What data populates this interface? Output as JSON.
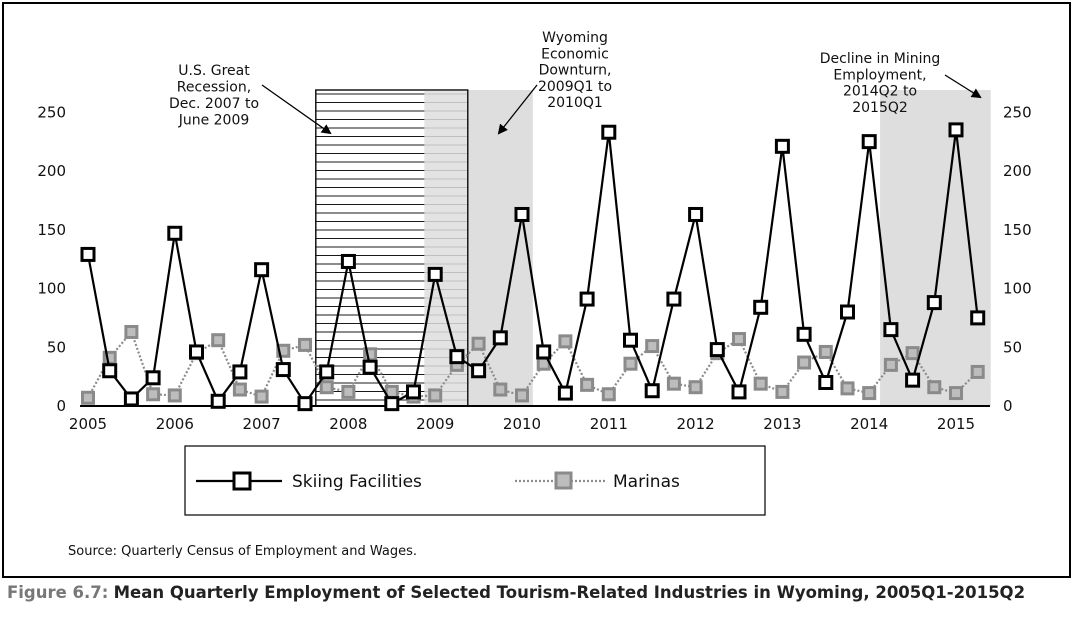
{
  "caption": {
    "prefix": "Figure 6.7:",
    "title": "Mean Quarterly Employment of Selected Tourism-Related Industries in Wyoming, 2005Q1-2015Q2"
  },
  "source": "Source: Quarterly Census of Employment and Wages.",
  "annotations": {
    "recession": [
      "U.S. Great",
      "Recession,",
      "Dec. 2007 to",
      "June 2009"
    ],
    "wyoming": [
      "Wyoming",
      "Economic",
      "Downturn,",
      "2009Q1 to",
      "2010Q1"
    ],
    "mining": [
      "Decline in Mining",
      "Employment,",
      "2014Q2 to",
      "2015Q2"
    ]
  },
  "colors": {
    "skiing": "#000000",
    "marinas": "#888888",
    "shade": "#dedede"
  },
  "chart_data": {
    "type": "line",
    "title": "",
    "xlabel": "",
    "ylabel": "",
    "ylim": [
      0,
      250
    ],
    "yticks": [
      0,
      50,
      100,
      150,
      200,
      250
    ],
    "xlim": [
      "2005Q1",
      "2015Q2"
    ],
    "year_labels": [
      "2005",
      "2006",
      "2007",
      "2008",
      "2009",
      "2010",
      "2011",
      "2012",
      "2013",
      "2014",
      "2015"
    ],
    "x": [
      "2005Q1",
      "2005Q2",
      "2005Q3",
      "2005Q4",
      "2006Q1",
      "2006Q2",
      "2006Q3",
      "2006Q4",
      "2007Q1",
      "2007Q2",
      "2007Q3",
      "2007Q4",
      "2008Q1",
      "2008Q2",
      "2008Q3",
      "2008Q4",
      "2009Q1",
      "2009Q2",
      "2009Q3",
      "2009Q4",
      "2010Q1",
      "2010Q2",
      "2010Q3",
      "2010Q4",
      "2011Q1",
      "2011Q2",
      "2011Q3",
      "2011Q4",
      "2012Q1",
      "2012Q2",
      "2012Q3",
      "2012Q4",
      "2013Q1",
      "2013Q2",
      "2013Q3",
      "2013Q4",
      "2014Q1",
      "2014Q2",
      "2014Q3",
      "2014Q4",
      "2015Q1",
      "2015Q2"
    ],
    "series": [
      {
        "name": "Skiing Facilities",
        "values": [
          129,
          30,
          6,
          24,
          147,
          46,
          4,
          29,
          116,
          31,
          2,
          29,
          123,
          33,
          2,
          12,
          112,
          42,
          30,
          58,
          163,
          46,
          11,
          91,
          233,
          56,
          13,
          91,
          163,
          48,
          12,
          84,
          221,
          61,
          20,
          80,
          225,
          65,
          22,
          88,
          235,
          75
        ]
      },
      {
        "name": "Marinas",
        "values": [
          7,
          41,
          63,
          10,
          9,
          45,
          56,
          14,
          8,
          47,
          52,
          16,
          12,
          44,
          12,
          8,
          9,
          35,
          53,
          14,
          9,
          36,
          55,
          18,
          10,
          36,
          51,
          19,
          16,
          45,
          57,
          19,
          12,
          37,
          46,
          15,
          11,
          35,
          45,
          16,
          11,
          29
        ]
      }
    ],
    "shaded_periods": [
      {
        "name": "U.S. Great Recession",
        "start": "2007Q4",
        "end": "2009Q2",
        "style": "hatched"
      },
      {
        "name": "Wyoming Economic Downturn",
        "start": "2009Q1",
        "end": "2010Q1",
        "style": "gray"
      },
      {
        "name": "Decline in Mining Employment",
        "start": "2014Q2",
        "end": "2015Q2",
        "style": "gray"
      }
    ],
    "legend_position": "bottom",
    "grid": false
  }
}
